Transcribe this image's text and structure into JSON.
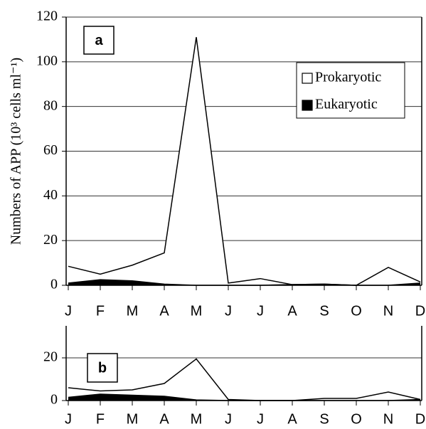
{
  "chart_data": [
    {
      "type": "area",
      "annotation": "a",
      "y_label": "Numbers of APP (10³ cells ml⁻¹)",
      "categories": [
        "J",
        "F",
        "M",
        "A",
        "M",
        "J",
        "J",
        "A",
        "S",
        "O",
        "N",
        "D"
      ],
      "series": [
        {
          "name": "Prokaryotic",
          "color": "#ffffff",
          "values": [
            8.5,
            5,
            9,
            14.5,
            111,
            1,
            3,
            0.3,
            0.5,
            0,
            8,
            1.5
          ]
        },
        {
          "name": "Eukaryotic",
          "color": "#000000",
          "values": [
            1,
            2.5,
            2,
            0.5,
            0,
            0,
            0,
            0.3,
            0.5,
            0,
            0,
            1
          ]
        }
      ],
      "ylim": [
        0,
        120
      ],
      "yticks": [
        0,
        20,
        40,
        60,
        80,
        100,
        120
      ],
      "grid": true,
      "legend": "upper right"
    },
    {
      "type": "area",
      "annotation": "b",
      "categories": [
        "J",
        "F",
        "M",
        "A",
        "M",
        "J",
        "J",
        "A",
        "S",
        "O",
        "N",
        "D"
      ],
      "series": [
        {
          "color": "#ffffff",
          "values": [
            6,
            4.5,
            5,
            8,
            19.5,
            0.5,
            0,
            0,
            1,
            1,
            4,
            0.5
          ]
        },
        {
          "color": "#000000",
          "values": [
            1.5,
            3,
            2.5,
            2,
            0.3,
            0,
            0,
            0,
            0,
            0,
            0,
            0.5
          ]
        }
      ],
      "ylim": [
        0,
        35
      ],
      "yticks": [
        0,
        20
      ],
      "grid": true
    }
  ]
}
